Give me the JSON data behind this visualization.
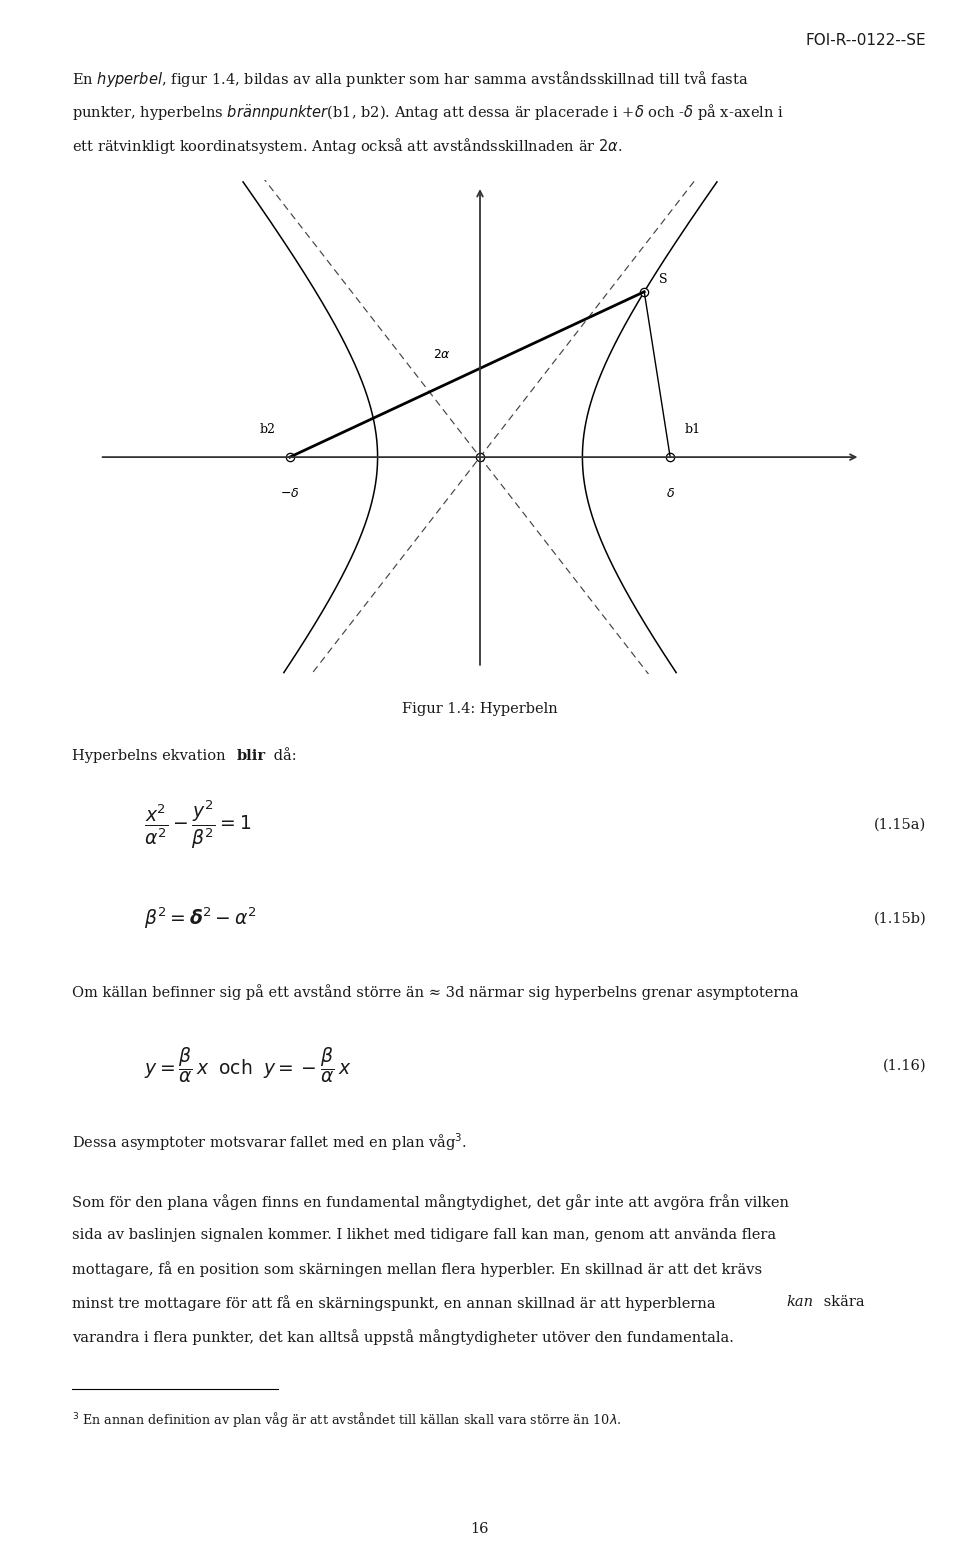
{
  "page_width": 9.6,
  "page_height": 15.67,
  "bg_color": "#ffffff",
  "text_color": "#1a1a1a",
  "header_text": "FOI-R--0122--SE",
  "figure_caption": "Figur 1.4: Hyperbeln",
  "eq1_label": "(1.15a)",
  "eq2_label": "(1.15b)",
  "eq3_label": "(1.16)",
  "page_num": "16",
  "alpha": 0.28,
  "delta": 0.52,
  "t_s": 1.05,
  "asymp_slope_factor": 1.55
}
